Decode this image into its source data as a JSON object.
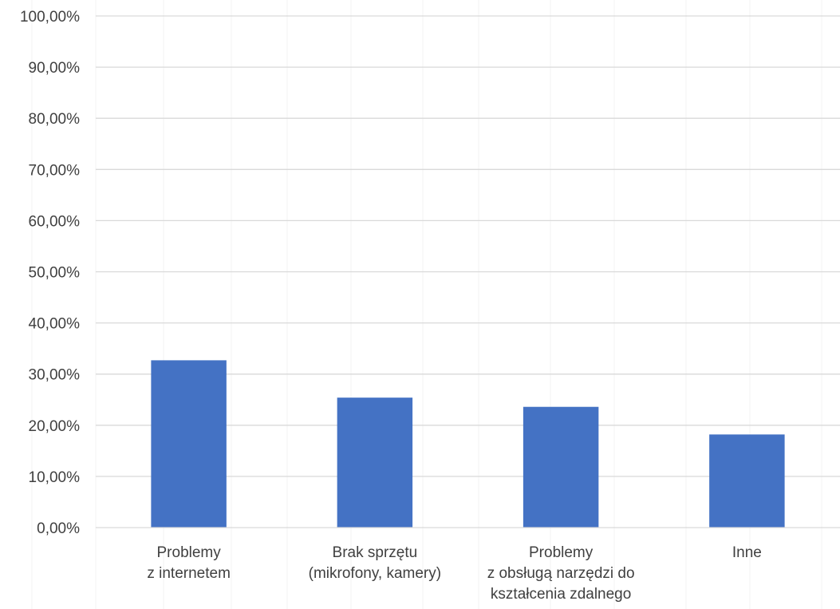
{
  "chart_data": {
    "type": "bar",
    "title": "",
    "xlabel": "",
    "ylabel": "",
    "ylim": [
      0,
      100
    ],
    "ytick_step": 10,
    "ytick_labels": [
      "0,00%",
      "10,00%",
      "20,00%",
      "30,00%",
      "40,00%",
      "50,00%",
      "60,00%",
      "70,00%",
      "80,00%",
      "90,00%",
      "100,00%"
    ],
    "grid": true,
    "legend": "none",
    "bar_color": "#4472c4",
    "categories": [
      [
        "Problemy",
        "z internetem"
      ],
      [
        "Brak sprzętu",
        "(mikrofony, kamery)"
      ],
      [
        "Problemy",
        "z obsługą narzędzi do",
        "kształcenia zdalnego"
      ],
      [
        "Inne"
      ]
    ],
    "values": [
      32.7,
      25.4,
      23.6,
      18.2
    ]
  }
}
